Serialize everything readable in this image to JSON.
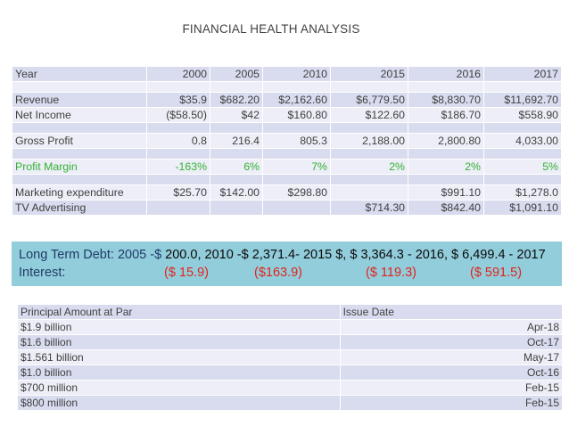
{
  "title": "FINANCIAL HEALTH ANALYSIS",
  "table": {
    "header": [
      "Year",
      "2000",
      "2005",
      "2010",
      "2015",
      "2016",
      "2017"
    ],
    "rows": [
      {
        "cells": [
          "",
          "",
          "",
          "",
          "",
          "",
          ""
        ],
        "style": "gap"
      },
      {
        "cells": [
          "Revenue",
          "$35.9",
          "$682.20",
          "$2,162.60",
          "$6,779.50",
          "$8,830.70",
          "$11,692.70"
        ]
      },
      {
        "cells": [
          "Net Income",
          "($58.50)",
          "$42",
          "$160.80",
          "$122.60",
          "$186.70",
          "$558.90"
        ]
      },
      {
        "cells": [
          "",
          "",
          "",
          "",
          "",
          "",
          ""
        ],
        "style": "gap"
      },
      {
        "cells": [
          "Gross Profit",
          "0.8",
          "216.4",
          "805.3",
          "2,188.00",
          "2,800.80",
          "4,033.00"
        ]
      },
      {
        "cells": [
          "",
          "",
          "",
          "",
          "",
          "",
          ""
        ],
        "style": "gap"
      },
      {
        "cells": [
          "Profit Margin",
          "-163%",
          "6%",
          "7%",
          "2%",
          "2%",
          "5%"
        ],
        "style": "green"
      },
      {
        "cells": [
          "",
          "",
          "",
          "",
          "",
          "",
          ""
        ],
        "style": "gap"
      },
      {
        "cells": [
          "Marketing expenditure",
          "$25.70",
          "$142.00",
          "$298.80",
          "",
          "$991.10",
          "$1,278.0"
        ]
      },
      {
        "cells": [
          "TV Advertising",
          "",
          "",
          "",
          "$714.30",
          "$842.40",
          "$1,091.10"
        ]
      }
    ]
  },
  "banner": {
    "line1_label": "Long Term Debt: 2005 -$ ",
    "line1_values": "200.0, 2010 -$ 2,371.4- 2015 $, $ 3,364.3 - 2016, $ 6,499.4 - 2017",
    "line2_label": "Interest:",
    "interest": [
      "($ 15.9)",
      "($163.9)",
      "($ 119.3)",
      "($ 591.5)"
    ]
  },
  "bonds": {
    "header": [
      "Principal Amount at Par",
      "Issue Date"
    ],
    "rows": [
      [
        "$1.9 billion",
        "Apr-18"
      ],
      [
        "$1.6 billion",
        "Oct-17"
      ],
      [
        "$1.561 billion",
        "May-17"
      ],
      [
        "$1.0 billion",
        "Oct-16"
      ],
      [
        "$700 million",
        "Feb-15"
      ],
      [
        "$800 million",
        "Feb-15"
      ]
    ]
  },
  "colors": {
    "row_dark": "#d9dcef",
    "row_light": "#edeef7",
    "banner": "#92cddc",
    "profit_margin": "#33b233",
    "interest": "#e2231a"
  }
}
